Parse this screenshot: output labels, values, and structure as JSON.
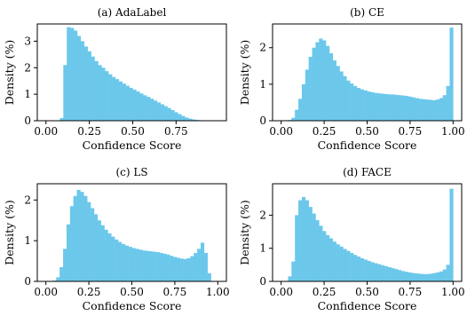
{
  "colors": {
    "bar": "#6cc8eb",
    "axis": "#000000"
  },
  "chart_data": [
    {
      "type": "bar",
      "title": "(a) AdaLabel",
      "xlabel": "Confidence Score",
      "ylabel": "Density (%)",
      "xlim": [
        -0.05,
        1.04
      ],
      "ylim": [
        0,
        3.65
      ],
      "xticks": [
        0.0,
        0.25,
        0.5,
        0.75
      ],
      "xtick_labels": [
        "0.00",
        "0.25",
        "0.50",
        "0.75"
      ],
      "yticks": [
        0,
        1,
        2,
        3
      ],
      "ytick_labels": [
        "0",
        "1",
        "2",
        "3"
      ],
      "bin_start": 0.0,
      "bin_width": 0.02,
      "values": [
        0,
        0,
        0,
        0,
        0.1,
        2.1,
        3.53,
        3.5,
        3.4,
        3.2,
        3.0,
        2.8,
        2.62,
        2.42,
        2.25,
        2.1,
        2.0,
        1.87,
        1.75,
        1.65,
        1.57,
        1.48,
        1.4,
        1.32,
        1.24,
        1.17,
        1.1,
        1.03,
        0.96,
        0.9,
        0.83,
        0.76,
        0.69,
        0.62,
        0.55,
        0.48,
        0.4,
        0.32,
        0.25,
        0.18,
        0.12,
        0.08,
        0.05,
        0.03,
        0.02,
        0.01,
        0.01,
        0.005,
        0,
        0
      ]
    },
    {
      "type": "bar",
      "title": "(b) CE",
      "xlabel": "Confidence Score",
      "ylabel": "Density (%)",
      "xlim": [
        -0.05,
        1.05
      ],
      "ylim": [
        0,
        2.65
      ],
      "xticks": [
        0.0,
        0.25,
        0.5,
        0.75,
        1.0
      ],
      "xtick_labels": [
        "0.00",
        "0.25",
        "0.50",
        "0.75",
        "1.00"
      ],
      "yticks": [
        0,
        1,
        2
      ],
      "ytick_labels": [
        "0",
        "1",
        "2"
      ],
      "bin_start": 0.0,
      "bin_width": 0.02,
      "values": [
        0,
        0,
        0.02,
        0.08,
        0.3,
        0.6,
        1.0,
        1.4,
        1.75,
        2.0,
        2.15,
        2.25,
        2.2,
        2.05,
        1.85,
        1.65,
        1.5,
        1.35,
        1.22,
        1.1,
        1.02,
        0.95,
        0.9,
        0.86,
        0.83,
        0.8,
        0.78,
        0.76,
        0.75,
        0.74,
        0.73,
        0.72,
        0.72,
        0.71,
        0.7,
        0.69,
        0.68,
        0.66,
        0.64,
        0.62,
        0.6,
        0.59,
        0.58,
        0.57,
        0.56,
        0.58,
        0.62,
        0.7,
        0.95,
        2.55
      ]
    },
    {
      "type": "bar",
      "title": "(c) LS",
      "xlabel": "Confidence Score",
      "ylabel": "Density (%)",
      "xlim": [
        -0.05,
        1.05
      ],
      "ylim": [
        0,
        2.4
      ],
      "xticks": [
        0.0,
        0.25,
        0.5,
        0.75,
        1.0
      ],
      "xtick_labels": [
        "0.00",
        "0.25",
        "0.50",
        "0.75",
        "1.00"
      ],
      "yticks": [
        0,
        1,
        2
      ],
      "ytick_labels": [
        "0",
        "1",
        "2"
      ],
      "bin_start": 0.0,
      "bin_width": 0.02,
      "values": [
        0,
        0,
        0.02,
        0.1,
        0.35,
        0.8,
        1.4,
        1.85,
        2.1,
        2.25,
        2.2,
        2.1,
        1.95,
        1.8,
        1.65,
        1.5,
        1.38,
        1.27,
        1.18,
        1.1,
        1.03,
        0.97,
        0.92,
        0.88,
        0.85,
        0.82,
        0.8,
        0.78,
        0.76,
        0.75,
        0.74,
        0.73,
        0.72,
        0.7,
        0.68,
        0.66,
        0.63,
        0.6,
        0.58,
        0.56,
        0.55,
        0.57,
        0.62,
        0.7,
        0.8,
        0.95,
        0.7,
        0.2,
        0,
        0
      ]
    },
    {
      "type": "bar",
      "title": "(d) FACE",
      "xlabel": "Confidence Score",
      "ylabel": "Density (%)",
      "xlim": [
        -0.05,
        1.05
      ],
      "ylim": [
        0,
        2.95
      ],
      "xticks": [
        0.0,
        0.25,
        0.5,
        0.75,
        1.0
      ],
      "xtick_labels": [
        "0.00",
        "0.25",
        "0.50",
        "0.75",
        "1.00"
      ],
      "yticks": [
        0,
        1,
        2
      ],
      "ytick_labels": [
        "0",
        "1",
        "2"
      ],
      "bin_start": 0.0,
      "bin_width": 0.02,
      "values": [
        0,
        0,
        0.15,
        0.6,
        2.0,
        2.45,
        2.55,
        2.45,
        2.25,
        2.05,
        1.85,
        1.68,
        1.52,
        1.4,
        1.3,
        1.2,
        1.12,
        1.05,
        0.98,
        0.92,
        0.86,
        0.8,
        0.75,
        0.7,
        0.66,
        0.62,
        0.58,
        0.55,
        0.52,
        0.49,
        0.46,
        0.43,
        0.4,
        0.37,
        0.34,
        0.31,
        0.29,
        0.27,
        0.25,
        0.24,
        0.23,
        0.22,
        0.22,
        0.23,
        0.25,
        0.27,
        0.3,
        0.36,
        0.5,
        2.8
      ]
    }
  ]
}
